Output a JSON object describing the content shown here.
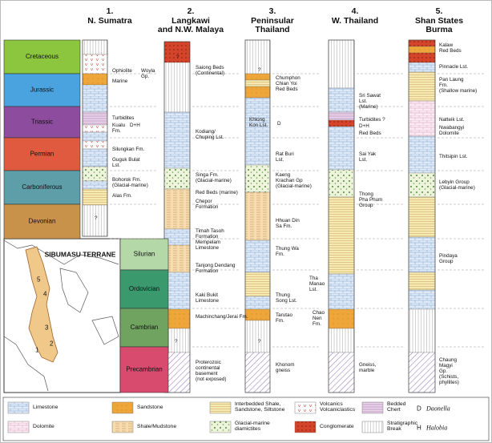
{
  "periods": [
    "Cretaceous",
    "Jurassic",
    "Triassic",
    "Permian",
    "Carboniferous",
    "Devonian",
    "Silurian",
    "Ordovician",
    "Cambrian",
    "Precambrian"
  ],
  "columns": [
    {
      "number": "1.",
      "name": [
        "N. Sumatra"
      ],
      "labels": [
        {
          "lines": [
            "Ophiolite"
          ]
        },
        {
          "lines": [
            "Woyla",
            "Gp."
          ]
        },
        {
          "lines": [
            "Marine"
          ]
        },
        {
          "lines": [
            "Turbidites"
          ]
        },
        {
          "lines": [
            "D+H"
          ]
        },
        {
          "lines": [
            "Kualu",
            "Fm."
          ]
        },
        {
          "lines": [
            "Silungkan Fm."
          ]
        },
        {
          "lines": [
            "Guguk Bulat",
            "Lst."
          ]
        },
        {
          "lines": [
            "Bohorok Fm.",
            "(Glacial-marine)"
          ]
        },
        {
          "lines": [
            "Alas Fm."
          ]
        },
        {
          "lines": [
            "?"
          ]
        }
      ]
    },
    {
      "number": "2.",
      "name": [
        "Langkawi",
        "and N.W. Malaya"
      ],
      "labels": [
        {
          "lines": [
            "?"
          ]
        },
        {
          "lines": [
            "Saiong Beds",
            "(Continental)"
          ]
        },
        {
          "lines": [
            "Kodiang/",
            "Chuping Lst."
          ]
        },
        {
          "lines": [
            "Singa Fm.",
            "(Glacial-marine)"
          ]
        },
        {
          "lines": [
            "Red Beds (marine)"
          ]
        },
        {
          "lines": [
            "Chepor",
            "Formation"
          ]
        },
        {
          "lines": [
            "Timah Tasoh",
            "Formation"
          ]
        },
        {
          "lines": [
            "Mempelam",
            "Limestone"
          ]
        },
        {
          "lines": [
            "Tanjong Dendang",
            "Formation"
          ]
        },
        {
          "lines": [
            "Kaki Bukit",
            "Limestone"
          ]
        },
        {
          "lines": [
            "Machinchang/Jerai Fm."
          ]
        },
        {
          "lines": [
            "?"
          ]
        },
        {
          "lines": [
            "Proterozoic",
            "continental",
            "basement",
            "(not exposed)"
          ]
        }
      ]
    },
    {
      "number": "3.",
      "name": [
        "Peninsular",
        "Thailand"
      ],
      "labels": [
        {
          "lines": [
            "?"
          ]
        },
        {
          "lines": [
            "Chumphon",
            "Chian Yoi",
            "Red Beds"
          ]
        },
        {
          "lines": [
            "Khlong",
            "Kon Lst."
          ]
        },
        {
          "lines": [
            "D"
          ]
        },
        {
          "lines": [
            "Rat Buri",
            "Lst."
          ]
        },
        {
          "lines": [
            "Kaeng",
            "Krachan Gp",
            "(Glacial-marine)"
          ]
        },
        {
          "lines": [
            "Hhuan Din",
            "Sa Fm."
          ]
        },
        {
          "lines": [
            "Thung Wa",
            "Fm."
          ]
        },
        {
          "lines": [
            "Thung",
            "Song Lst."
          ]
        },
        {
          "lines": [
            "Tarutao",
            "Fm."
          ]
        },
        {
          "lines": [
            "?"
          ]
        },
        {
          "lines": [
            "Khonom",
            "gneiss"
          ]
        }
      ]
    },
    {
      "number": "4.",
      "name": [
        "W. Thailand"
      ],
      "labels": [
        {
          "lines": [
            "Sri Sawat",
            "Lst.",
            "(Marine)"
          ]
        },
        {
          "lines": [
            "Turbidites ?"
          ]
        },
        {
          "lines": [
            "D+H"
          ]
        },
        {
          "lines": [
            "Red Beds"
          ]
        },
        {
          "lines": [
            "Sai Yak",
            "Lst."
          ]
        },
        {
          "lines": [
            "Thong",
            "Pha Phum",
            "Group"
          ]
        },
        {
          "lines": [
            "Tha",
            "Manao",
            "Lst."
          ]
        },
        {
          "lines": [
            "Chao",
            "Nen",
            "Fm."
          ]
        },
        {
          "lines": [
            "Gneiss,",
            "marble"
          ]
        }
      ]
    },
    {
      "number": "5.",
      "name": [
        "Shan States",
        "Burma"
      ],
      "labels": [
        {
          "lines": [
            "Kalaw",
            "Red Beds"
          ]
        },
        {
          "lines": [
            "Pinnacle Lst."
          ]
        },
        {
          "lines": [
            "Pan Laung",
            "Fm.",
            "(Shallow marine)"
          ]
        },
        {
          "lines": [
            "Natteik Lst."
          ]
        },
        {
          "lines": [
            "Nwabangyi",
            "Dolomite"
          ]
        },
        {
          "lines": [
            "Thitsipin Lst."
          ]
        },
        {
          "lines": [
            "Lebyin Group",
            "(Glacial-marine)"
          ]
        },
        {
          "lines": [
            "Pindaya",
            "Group"
          ]
        },
        {
          "lines": [
            "Chaung",
            "Magyi",
            "Gp.",
            "(Schists,",
            "phyllites)"
          ]
        }
      ]
    }
  ],
  "map": {
    "title": "SIBUMASU TERRANE",
    "numbers": [
      "1",
      "2",
      "3",
      "4",
      "5"
    ]
  },
  "legend": [
    {
      "lines": [
        "Limestone"
      ]
    },
    {
      "lines": [
        "Sandstone"
      ]
    },
    {
      "lines": [
        "Interbedded Shale,",
        "Sandstone, Siltstone"
      ]
    },
    {
      "lines": [
        "Volcanics",
        "Volcaniclastics"
      ]
    },
    {
      "lines": [
        "Bedded",
        "Chert"
      ]
    },
    {
      "symbol": "D",
      "name": "Daonella"
    },
    {
      "lines": [
        "Dolomite"
      ]
    },
    {
      "lines": [
        "Shale/Mudstone"
      ]
    },
    {
      "lines": [
        "Glacial-marine",
        "diamictites"
      ]
    },
    {
      "lines": [
        "Conglomerate"
      ]
    },
    {
      "lines": [
        "Stratigraphic",
        "Break"
      ]
    },
    {
      "symbol": "H",
      "name": "Halobia"
    }
  ]
}
